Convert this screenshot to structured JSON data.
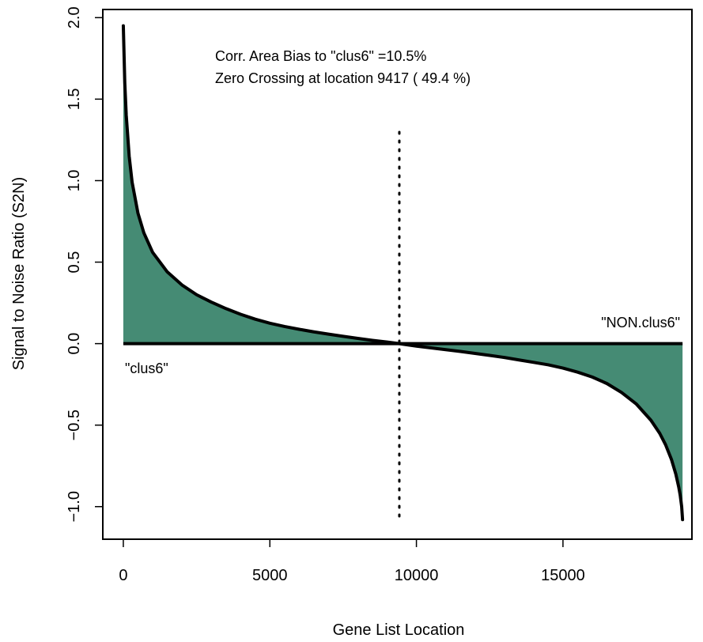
{
  "chart_data": {
    "type": "area",
    "xlabel": "Gene List Location",
    "ylabel": "Signal to Noise Ratio (S2N)",
    "xlim": [
      -700,
      19400
    ],
    "ylim": [
      -1.2,
      2.05
    ],
    "x_ticks": [
      0,
      5000,
      10000,
      15000
    ],
    "x_tick_labels": [
      "0",
      "5000",
      "10000",
      "15000"
    ],
    "y_ticks": [
      -1.0,
      -0.5,
      0.0,
      0.5,
      1.0,
      1.5,
      2.0
    ],
    "y_tick_labels": [
      "−1.0",
      "−0.5",
      "0.0",
      "0.5",
      "1.0",
      "1.5",
      "2.0"
    ],
    "grid": false,
    "fill_color": "#458b74",
    "line_color": "#000000",
    "zero_crossing": 9417,
    "n_genes": 19080,
    "series": [
      {
        "x": [
          0,
          50,
          100,
          200,
          300,
          500,
          700,
          1000,
          1500,
          2000,
          2500,
          3000,
          3500,
          4000,
          4500,
          5000,
          5500,
          6000,
          6500,
          7000,
          7500,
          8000,
          8500,
          9000,
          9417,
          10000,
          10500,
          11000,
          11500,
          12000,
          12500,
          13000,
          13500,
          14000,
          14500,
          15000,
          15500,
          16000,
          16500,
          17000,
          17500,
          18000,
          18300,
          18500,
          18700,
          18850,
          18950,
          19000,
          19050,
          19080
        ],
        "y": [
          1.95,
          1.6,
          1.4,
          1.15,
          0.99,
          0.8,
          0.68,
          0.56,
          0.44,
          0.36,
          0.3,
          0.255,
          0.215,
          0.18,
          0.15,
          0.125,
          0.105,
          0.088,
          0.072,
          0.058,
          0.045,
          0.032,
          0.02,
          0.01,
          0.0,
          -0.015,
          -0.026,
          -0.037,
          -0.048,
          -0.06,
          -0.072,
          -0.085,
          -0.1,
          -0.115,
          -0.13,
          -0.15,
          -0.175,
          -0.205,
          -0.245,
          -0.3,
          -0.37,
          -0.47,
          -0.55,
          -0.62,
          -0.71,
          -0.8,
          -0.88,
          -0.93,
          -1.0,
          -1.08
        ]
      }
    ]
  },
  "annotations": {
    "corr_line": "Corr. Area Bias to \"clus6\" =10.5%",
    "zero_line": "Zero Crossing at location  9417  ( 49.4  %)",
    "left_label": "\"clus6\"",
    "right_label": "\"NON.clus6\""
  }
}
